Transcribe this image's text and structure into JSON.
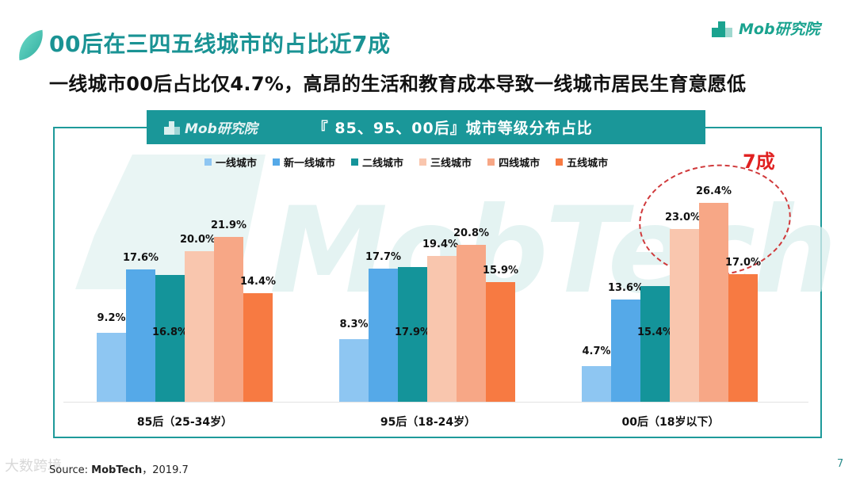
{
  "slide": {
    "title": "00后在三四五线城市的占比近7成",
    "subtitle": "一线城市00后占比仅4.7%，高昂的生活和教育成本导致一线城市居民生育意愿低",
    "brand": "Mob研究院",
    "page_number": "7",
    "source_prefix": "Source: ",
    "source_name": "MobTech",
    "source_suffix": "，2019.7",
    "bottom_watermark": "大数跨境"
  },
  "chart_header": {
    "logo": "Mob研究院",
    "title": "『 85、95、00后』城市等级分布占比"
  },
  "annotation": {
    "label": "7成",
    "color": "#e02020"
  },
  "watermark_text": "MobTech",
  "chart_data": {
    "type": "bar",
    "title": "『 85、95、00后』城市等级分布占比",
    "xlabel": "",
    "ylabel": "",
    "ylim": [
      0,
      30
    ],
    "grid": false,
    "legend_position": "top",
    "categories": [
      "85后（25-34岁）",
      "95后（18-24岁）",
      "00后（18岁以下）"
    ],
    "series": [
      {
        "name": "一线城市",
        "color": "#8ec6f2",
        "values": [
          9.2,
          8.3,
          4.7
        ]
      },
      {
        "name": "新一线城市",
        "color": "#55a9e8",
        "values": [
          17.6,
          17.7,
          13.6
        ]
      },
      {
        "name": "二线城市",
        "color": "#14949a",
        "values": [
          16.8,
          17.9,
          15.4
        ]
      },
      {
        "name": "三线城市",
        "color": "#f9c6ae",
        "values": [
          20.0,
          19.4,
          23.0
        ]
      },
      {
        "name": "四线城市",
        "color": "#f7a786",
        "values": [
          21.9,
          20.8,
          26.4
        ]
      },
      {
        "name": "五线城市",
        "color": "#f77a42",
        "values": [
          14.4,
          15.9,
          17.0
        ]
      }
    ],
    "value_labels": [
      [
        "9.2%",
        "17.6%",
        "16.8%",
        "20.0%",
        "21.9%",
        "14.4%"
      ],
      [
        "8.3%",
        "17.7%",
        "17.9%",
        "19.4%",
        "20.8%",
        "15.9%"
      ],
      [
        "4.7%",
        "13.6%",
        "15.4%",
        "23.0%",
        "26.4%",
        "17.0%"
      ]
    ],
    "annotations": [
      {
        "text": "7成",
        "target": "00后 三/四/五线城市 (dashed ellipse)"
      }
    ]
  }
}
